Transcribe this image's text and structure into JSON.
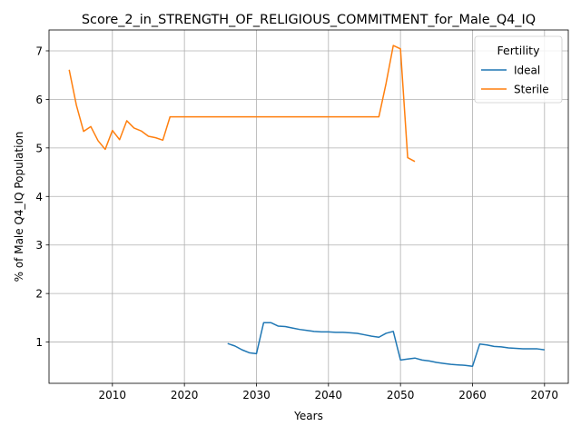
{
  "chart_data": {
    "type": "line",
    "title": "Score_2_in_STRENGTH_OF_RELIGIOUS_COMMITMENT_for_Male_Q4_IQ",
    "xlabel": "Years",
    "ylabel": "% of Male Q4_IQ Population",
    "xlim": [
      2001.2,
      2073.3
    ],
    "ylim": [
      0.15,
      7.43
    ],
    "xticks": [
      2010,
      2020,
      2030,
      2040,
      2050,
      2060,
      2070
    ],
    "yticks": [
      1,
      2,
      3,
      4,
      5,
      6,
      7
    ],
    "grid": true,
    "legend": {
      "title": "Fertility",
      "placement": "top-right"
    },
    "series": [
      {
        "name": "Ideal",
        "color": "#1f77b4",
        "x": [
          2026,
          2027,
          2028,
          2029,
          2030,
          2031,
          2032,
          2033,
          2034,
          2035,
          2036,
          2037,
          2038,
          2039,
          2040,
          2041,
          2042,
          2043,
          2044,
          2045,
          2046,
          2047,
          2048,
          2049,
          2050,
          2051,
          2052,
          2053,
          2054,
          2055,
          2056,
          2057,
          2058,
          2059,
          2060,
          2061,
          2062,
          2063,
          2064,
          2065,
          2066,
          2067,
          2068,
          2069,
          2070
        ],
        "values": [
          0.97,
          0.92,
          0.84,
          0.78,
          0.76,
          1.4,
          1.4,
          1.33,
          1.32,
          1.29,
          1.26,
          1.24,
          1.22,
          1.21,
          1.21,
          1.2,
          1.2,
          1.19,
          1.18,
          1.15,
          1.12,
          1.1,
          1.18,
          1.22,
          0.63,
          0.65,
          0.67,
          0.63,
          0.61,
          0.58,
          0.56,
          0.54,
          0.53,
          0.52,
          0.5,
          0.96,
          0.94,
          0.91,
          0.9,
          0.88,
          0.87,
          0.86,
          0.86,
          0.86,
          0.84
        ]
      },
      {
        "name": "Sterile",
        "color": "#ff7f0e",
        "x": [
          2004,
          2005,
          2006,
          2007,
          2008,
          2009,
          2010,
          2011,
          2012,
          2013,
          2014,
          2015,
          2016,
          2017,
          2018,
          2019,
          2020,
          2021,
          2022,
          2023,
          2024,
          2025,
          2026,
          2027,
          2028,
          2029,
          2030,
          2031,
          2032,
          2033,
          2034,
          2035,
          2036,
          2037,
          2038,
          2039,
          2040,
          2041,
          2042,
          2043,
          2044,
          2045,
          2046,
          2047,
          2048,
          2049,
          2050,
          2051,
          2052
        ],
        "values": [
          6.61,
          5.88,
          5.34,
          5.44,
          5.15,
          4.97,
          5.36,
          5.17,
          5.56,
          5.41,
          5.35,
          5.24,
          5.21,
          5.16,
          5.64,
          5.64,
          5.64,
          5.64,
          5.64,
          5.64,
          5.64,
          5.64,
          5.64,
          5.64,
          5.64,
          5.64,
          5.64,
          5.64,
          5.64,
          5.64,
          5.64,
          5.64,
          5.64,
          5.64,
          5.64,
          5.64,
          5.64,
          5.64,
          5.64,
          5.64,
          5.64,
          5.64,
          5.64,
          5.64,
          6.33,
          7.11,
          7.04,
          4.8,
          4.72
        ]
      }
    ]
  }
}
